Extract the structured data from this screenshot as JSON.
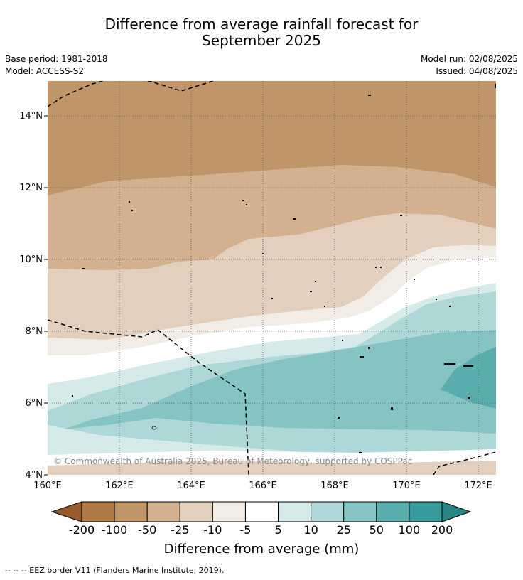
{
  "header": {
    "title_line1": "Difference from average rainfall forecast for",
    "title_line2": "September 2025",
    "base_period": "Base period: 1981-2018",
    "model": "Model: ACCESS-S2",
    "model_run": "Model run: 02/08/2025",
    "issued": "Issued: 04/08/2025"
  },
  "map": {
    "lat_ticks": [
      "4°N",
      "6°N",
      "8°N",
      "10°N",
      "12°N",
      "14°N"
    ],
    "lon_ticks": [
      "160°E",
      "162°E",
      "164°E",
      "166°E",
      "168°E",
      "170°E",
      "172°E"
    ],
    "copyright": "© Commonwealth of Australia 2025, Bureau of Meteorology, supported by COSPPac"
  },
  "colorbar": {
    "labels": [
      "-200",
      "-100",
      "-50",
      "-25",
      "-10",
      "-5",
      "5",
      "10",
      "25",
      "50",
      "100",
      "200"
    ],
    "colors": [
      "#9a5a2a",
      "#b07a44",
      "#c0956a",
      "#d3b190",
      "#e3cfbd",
      "#f2ece6",
      "#ffffff",
      "#d6eaea",
      "#aed8d8",
      "#86c4c4",
      "#5aadad",
      "#379b9b",
      "#2a8585"
    ],
    "title": "Difference from average (mm)"
  },
  "footer": {
    "legend": "--  --  -- EEZ border V11 (Flanders Marine Institute, 2019)."
  }
}
